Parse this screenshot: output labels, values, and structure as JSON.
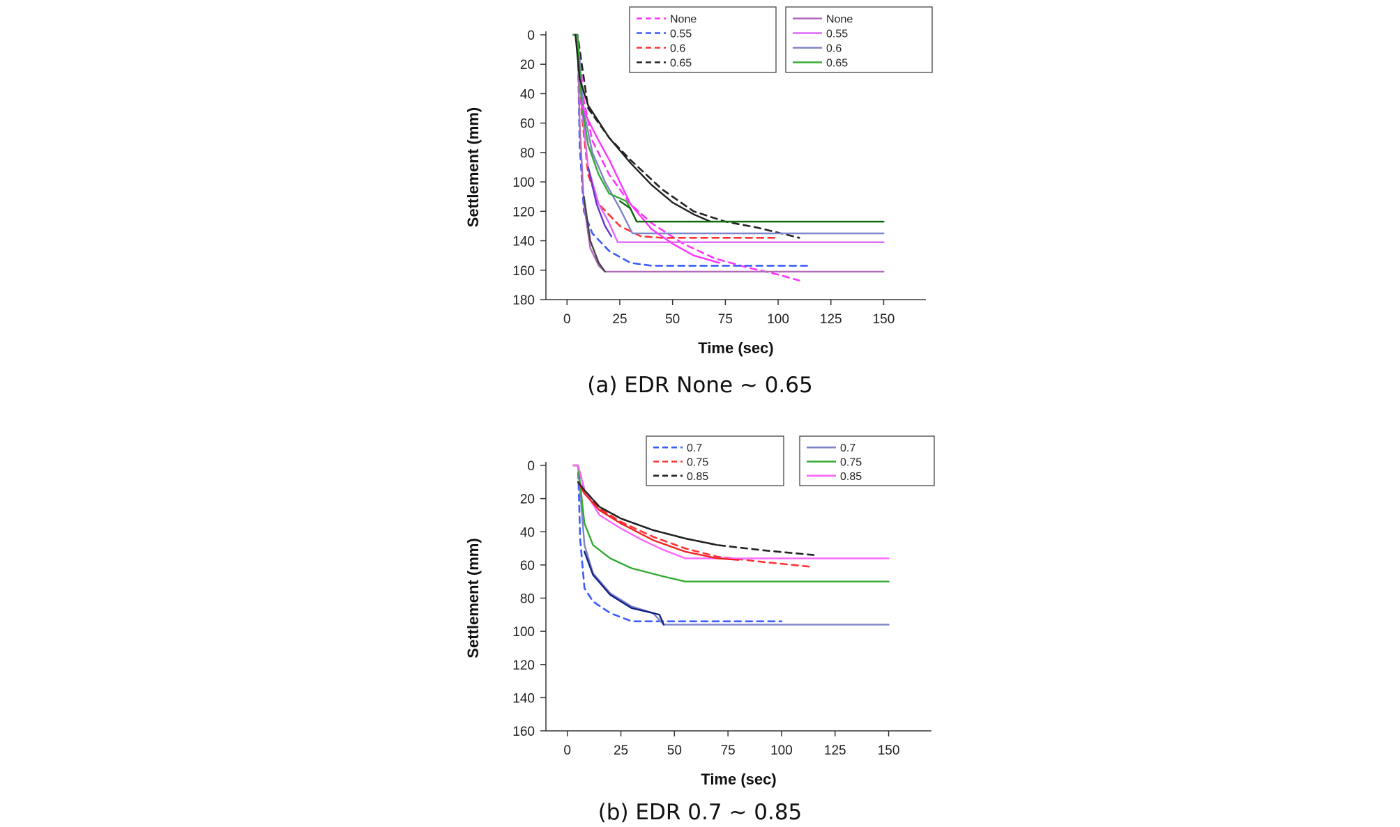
{
  "captions": {
    "a": "(a) EDR None ~ 0.65",
    "b": "(b) EDR 0.7 ~ 0.85"
  },
  "chart_data": [
    {
      "type": "line",
      "title": "",
      "xlabel": "Time (sec)",
      "ylabel": "Settlement (mm)",
      "xlim": [
        -10,
        170
      ],
      "ylim": [
        0,
        180
      ],
      "y_inverted": true,
      "xticks": [
        0,
        25,
        50,
        75,
        100,
        125,
        150
      ],
      "yticks": [
        0,
        20,
        40,
        60,
        80,
        100,
        120,
        140,
        160,
        180
      ],
      "grid": false,
      "legends": [
        {
          "placement": "top-center",
          "entries": [
            "None",
            "0.55",
            "0.6",
            "0.65"
          ],
          "style": "dashed"
        },
        {
          "placement": "top-right",
          "entries": [
            "None",
            "0.55",
            "0.6",
            "0.65"
          ],
          "style": "solid"
        }
      ],
      "series": [
        {
          "name": "None",
          "style": "dashed",
          "color": "#ff33ff",
          "x": [
            3,
            5,
            8,
            12,
            20,
            30,
            40,
            55,
            70,
            85,
            100,
            110
          ],
          "y": [
            0,
            0,
            45,
            72,
            95,
            115,
            128,
            142,
            152,
            158,
            163,
            167
          ]
        },
        {
          "name": "0.55",
          "style": "dashed",
          "color": "#3a5bff",
          "x": [
            3,
            5,
            6,
            8,
            12,
            20,
            30,
            40,
            115
          ],
          "y": [
            0,
            0,
            75,
            120,
            135,
            147,
            155,
            157,
            157
          ]
        },
        {
          "name": "0.6",
          "style": "dashed",
          "color": "#ff3333",
          "x": [
            3,
            5,
            7,
            10,
            15,
            25,
            35,
            45,
            100
          ],
          "y": [
            0,
            0,
            55,
            95,
            115,
            130,
            137,
            138,
            138
          ]
        },
        {
          "name": "0.65",
          "style": "dashed",
          "color": "#222222",
          "x": [
            3,
            5,
            10,
            20,
            30,
            45,
            60,
            75,
            90,
            110
          ],
          "y": [
            0,
            0,
            50,
            70,
            85,
            105,
            120,
            127,
            131,
            138
          ]
        },
        {
          "name": "None",
          "style": "solid",
          "color": "#b06ab8",
          "x": [
            3,
            5,
            6,
            8,
            11,
            15,
            18,
            150
          ],
          "y": [
            0,
            0,
            60,
            115,
            145,
            157,
            161,
            161
          ]
        },
        {
          "name": "0.55",
          "style": "solid",
          "color": "#e066ff",
          "x": [
            3,
            5,
            7,
            10,
            15,
            20,
            24,
            150
          ],
          "y": [
            0,
            0,
            50,
            90,
            115,
            128,
            141,
            141
          ]
        },
        {
          "name": "0.6",
          "style": "solid",
          "color": "#7e84c8",
          "x": [
            3,
            5,
            8,
            12,
            18,
            25,
            31,
            150
          ],
          "y": [
            0,
            0,
            52,
            80,
            100,
            118,
            135,
            135
          ]
        },
        {
          "name": "0.65",
          "style": "solid",
          "color": "#33aa33",
          "x": [
            3,
            5,
            7,
            10,
            15,
            20,
            28,
            30,
            33,
            150
          ],
          "y": [
            0,
            0,
            48,
            75,
            95,
            108,
            113,
            118,
            127,
            127
          ]
        },
        {
          "name": "",
          "style": "solid",
          "color": "#222222",
          "x": [
            4,
            6,
            10,
            20,
            30,
            40,
            50,
            60,
            68
          ],
          "y": [
            0,
            30,
            48,
            70,
            87,
            102,
            114,
            122,
            127
          ]
        },
        {
          "name": "",
          "style": "solid",
          "color": "#ff33ff",
          "x": [
            6,
            10,
            15,
            20,
            25,
            30,
            40,
            50,
            60,
            72
          ],
          "y": [
            45,
            58,
            72,
            85,
            100,
            115,
            132,
            142,
            150,
            155
          ]
        },
        {
          "name": "",
          "style": "solid",
          "color": "#6633cc",
          "x": [
            10,
            14,
            18,
            21
          ],
          "y": [
            90,
            115,
            130,
            137
          ]
        },
        {
          "name": "",
          "style": "solid",
          "color": "#116611",
          "x": [
            25,
            30,
            33,
            150
          ],
          "y": [
            113,
            118,
            127,
            127
          ]
        },
        {
          "name": "",
          "style": "solid",
          "color": "#444444",
          "x": [
            8,
            11,
            15,
            18
          ],
          "y": [
            110,
            140,
            155,
            161
          ]
        }
      ]
    },
    {
      "type": "line",
      "title": "",
      "xlabel": "Time (sec)",
      "ylabel": "Settlement (mm)",
      "xlim": [
        -10,
        170
      ],
      "ylim": [
        0,
        160
      ],
      "y_inverted": true,
      "xticks": [
        0,
        25,
        50,
        75,
        100,
        125,
        150
      ],
      "yticks": [
        0,
        20,
        40,
        60,
        80,
        100,
        120,
        140,
        160
      ],
      "grid": false,
      "legends": [
        {
          "placement": "top-center",
          "entries": [
            "0.7",
            "0.75",
            "0.85"
          ],
          "style": "dashed"
        },
        {
          "placement": "top-right",
          "entries": [
            "0.7",
            "0.75",
            "0.85"
          ],
          "style": "solid"
        }
      ],
      "series": [
        {
          "name": "0.7",
          "style": "dashed",
          "color": "#3a5bff",
          "x": [
            3,
            5,
            6,
            8,
            12,
            20,
            30,
            40,
            100
          ],
          "y": [
            0,
            0,
            45,
            74,
            82,
            89,
            94,
            94,
            94
          ]
        },
        {
          "name": "0.75",
          "style": "dashed",
          "color": "#ff3333",
          "x": [
            3,
            5,
            8,
            15,
            25,
            40,
            55,
            70,
            90,
            113
          ],
          "y": [
            0,
            0,
            15,
            26,
            34,
            43,
            50,
            55,
            58,
            61
          ]
        },
        {
          "name": "0.85",
          "style": "dashed",
          "color": "#222222",
          "x": [
            3,
            5,
            8,
            15,
            25,
            40,
            55,
            70,
            90,
            115
          ],
          "y": [
            0,
            0,
            15,
            25,
            32,
            39,
            44,
            48,
            51,
            54
          ]
        },
        {
          "name": "0.7",
          "style": "solid",
          "color": "#7e84c8",
          "x": [
            3,
            5,
            8,
            12,
            20,
            30,
            40,
            45,
            150
          ],
          "y": [
            0,
            0,
            48,
            65,
            77,
            85,
            89,
            96,
            96
          ]
        },
        {
          "name": "0.75",
          "style": "solid",
          "color": "#33aa33",
          "x": [
            3,
            5,
            8,
            12,
            20,
            30,
            45,
            55,
            150
          ],
          "y": [
            0,
            0,
            35,
            48,
            56,
            62,
            67,
            70,
            70
          ]
        },
        {
          "name": "0.85",
          "style": "solid",
          "color": "#ff66ff",
          "x": [
            3,
            5,
            8,
            15,
            25,
            35,
            45,
            55,
            150
          ],
          "y": [
            0,
            0,
            15,
            30,
            38,
            45,
            51,
            56,
            56
          ]
        },
        {
          "name": "",
          "style": "solid",
          "color": "#ee2222",
          "x": [
            5,
            8,
            15,
            25,
            40,
            55,
            70,
            80
          ],
          "y": [
            10,
            17,
            27,
            35,
            45,
            52,
            56,
            57
          ]
        },
        {
          "name": "",
          "style": "solid",
          "color": "#222222",
          "x": [
            5,
            8,
            15,
            25,
            40,
            55,
            70
          ],
          "y": [
            10,
            15,
            25,
            32,
            39,
            44,
            48
          ]
        },
        {
          "name": "",
          "style": "solid",
          "color": "#112288",
          "x": [
            8,
            12,
            20,
            30,
            40,
            43,
            45
          ],
          "y": [
            52,
            66,
            78,
            86,
            89,
            90,
            96
          ]
        }
      ]
    }
  ]
}
